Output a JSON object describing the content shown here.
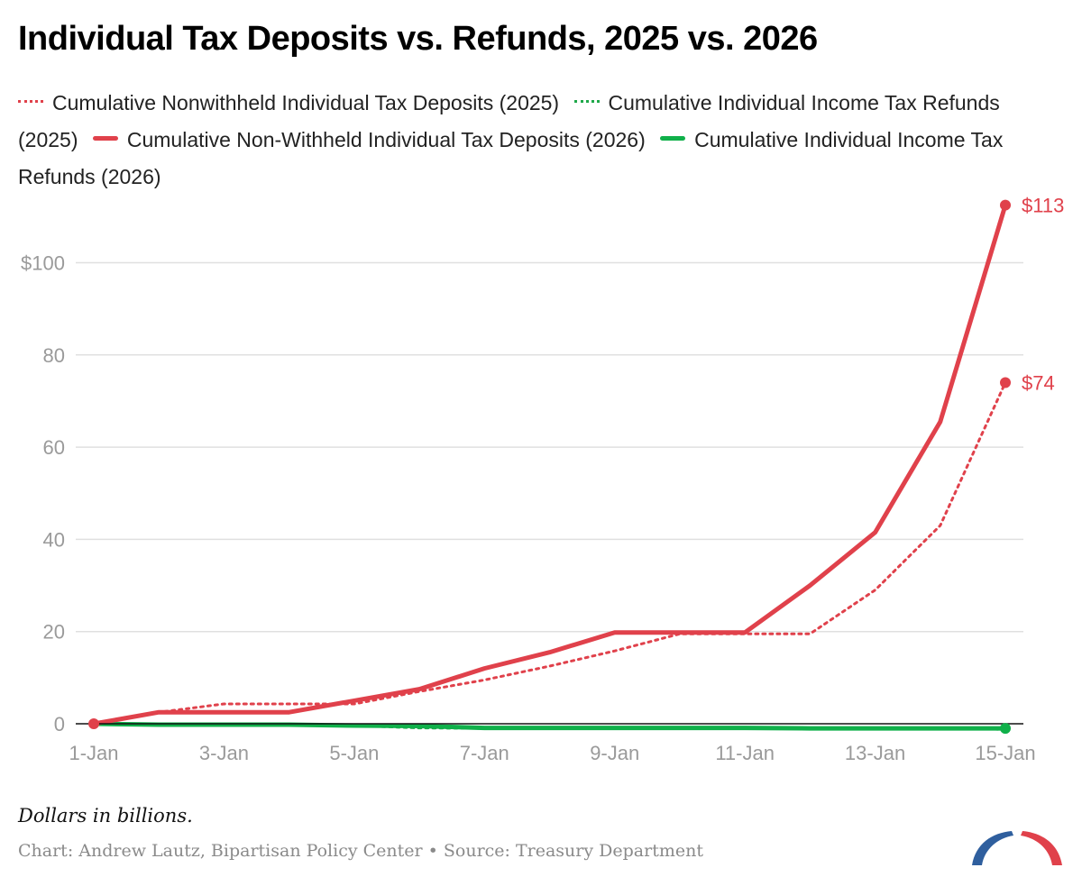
{
  "title": "Individual Tax Deposits vs. Refunds, 2025 vs. 2026",
  "legend": [
    {
      "label": "Cumulative Nonwithheld Individual Tax Deposits (2025)",
      "style": "dotted",
      "color": "#e0414b"
    },
    {
      "label": "Cumulative Individual Income Tax Refunds (2025)",
      "style": "dotted",
      "color": "#1fa84a"
    },
    {
      "label": "Cumulative Non-Withheld Individual Tax Deposits (2026)",
      "style": "solid",
      "color": "#e0414b"
    },
    {
      "label": "Cumulative Individual Income Tax Refunds (2026)",
      "style": "solid",
      "color": "#10b04a"
    }
  ],
  "note": "Dollars in billions.",
  "source": "Chart: Andrew Lautz, Bipartisan Policy Center • Source: Treasury Department",
  "colors": {
    "red": "#e0414b",
    "green": "#10b04a",
    "grid": "#e0e0e0",
    "axis_text": "#9a9a9a",
    "logo_blue": "#2f5f9e"
  },
  "chart_data": {
    "type": "line",
    "x": [
      "1-Jan",
      "2-Jan",
      "3-Jan",
      "4-Jan",
      "5-Jan",
      "6-Jan",
      "7-Jan",
      "8-Jan",
      "9-Jan",
      "10-Jan",
      "11-Jan",
      "12-Jan",
      "13-Jan",
      "14-Jan",
      "15-Jan"
    ],
    "x_tick_labels": [
      "1-Jan",
      "3-Jan",
      "5-Jan",
      "7-Jan",
      "9-Jan",
      "11-Jan",
      "13-Jan",
      "15-Jan"
    ],
    "y_ticks": [
      0,
      20,
      40,
      60,
      80,
      100
    ],
    "y_tick_labels": [
      "0",
      "20",
      "40",
      "60",
      "80",
      "$100"
    ],
    "ylim": [
      -2,
      116
    ],
    "grid": true,
    "series": [
      {
        "name": "Cumulative Nonwithheld Individual Tax Deposits (2025)",
        "style": "dotted",
        "color": "#e0414b",
        "values": [
          0,
          2.5,
          4.3,
          4.3,
          4.3,
          7,
          9.5,
          12.5,
          15.8,
          19.5,
          19.5,
          19.5,
          29,
          43,
          74
        ],
        "end_label": "$74"
      },
      {
        "name": "Cumulative Individual Income Tax Refunds (2025)",
        "style": "dotted",
        "color": "#1fa84a",
        "values": [
          0,
          -0.2,
          -0.3,
          -0.3,
          -0.4,
          -0.9,
          -1.0,
          -1.0,
          -1.0,
          -1.0,
          -1.0,
          -1.0,
          -1.1,
          -1.1,
          -1.2
        ]
      },
      {
        "name": "Cumulative Non-Withheld Individual Tax Deposits (2026)",
        "style": "solid",
        "color": "#e0414b",
        "values": [
          0,
          2.5,
          2.5,
          2.5,
          5,
          7.5,
          12,
          15.5,
          19.8,
          19.8,
          19.8,
          30,
          41.5,
          65.5,
          112.5
        ],
        "end_label": "$113"
      },
      {
        "name": "Cumulative Individual Income Tax Refunds (2026)",
        "style": "solid",
        "color": "#10b04a",
        "values": [
          0,
          -0.2,
          -0.2,
          -0.2,
          -0.4,
          -0.5,
          -0.9,
          -0.9,
          -0.9,
          -0.9,
          -0.9,
          -1.0,
          -1.0,
          -1.0,
          -1.0
        ]
      }
    ]
  }
}
